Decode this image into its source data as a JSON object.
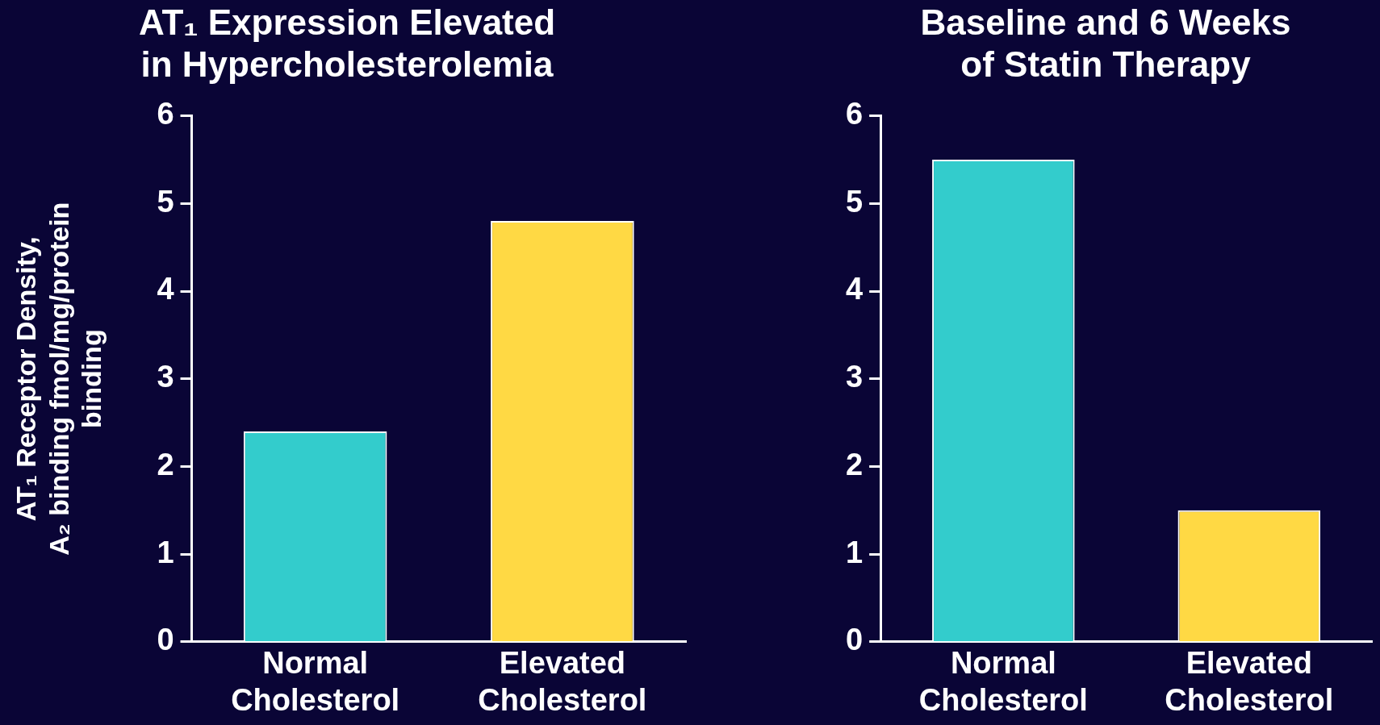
{
  "chart_data": [
    {
      "type": "bar",
      "title": "AT₁ Expression Elevated\nin Hypercholesterolemia",
      "ylabel": "AT₁ Receptor Density,\nA₂ binding fmol/mg/protein\nbinding",
      "categories": [
        "Normal Cholesterol",
        "Elevated Cholesterol"
      ],
      "values": [
        2.4,
        4.8
      ],
      "colors": [
        "#33cccc",
        "#ffd944"
      ],
      "ylim": [
        0,
        6
      ],
      "yticks": [
        0,
        1,
        2,
        3,
        4,
        5,
        6
      ],
      "grid": false,
      "legend": false
    },
    {
      "type": "bar",
      "title": "Baseline and 6 Weeks\nof Statin Therapy",
      "categories": [
        "Normal Cholesterol",
        "Elevated Cholesterol"
      ],
      "values": [
        5.5,
        1.5
      ],
      "colors": [
        "#33cccc",
        "#ffd944"
      ],
      "ylim": [
        0,
        6
      ],
      "yticks": [
        0,
        1,
        2,
        3,
        4,
        5,
        6
      ],
      "grid": false,
      "legend": false
    }
  ]
}
